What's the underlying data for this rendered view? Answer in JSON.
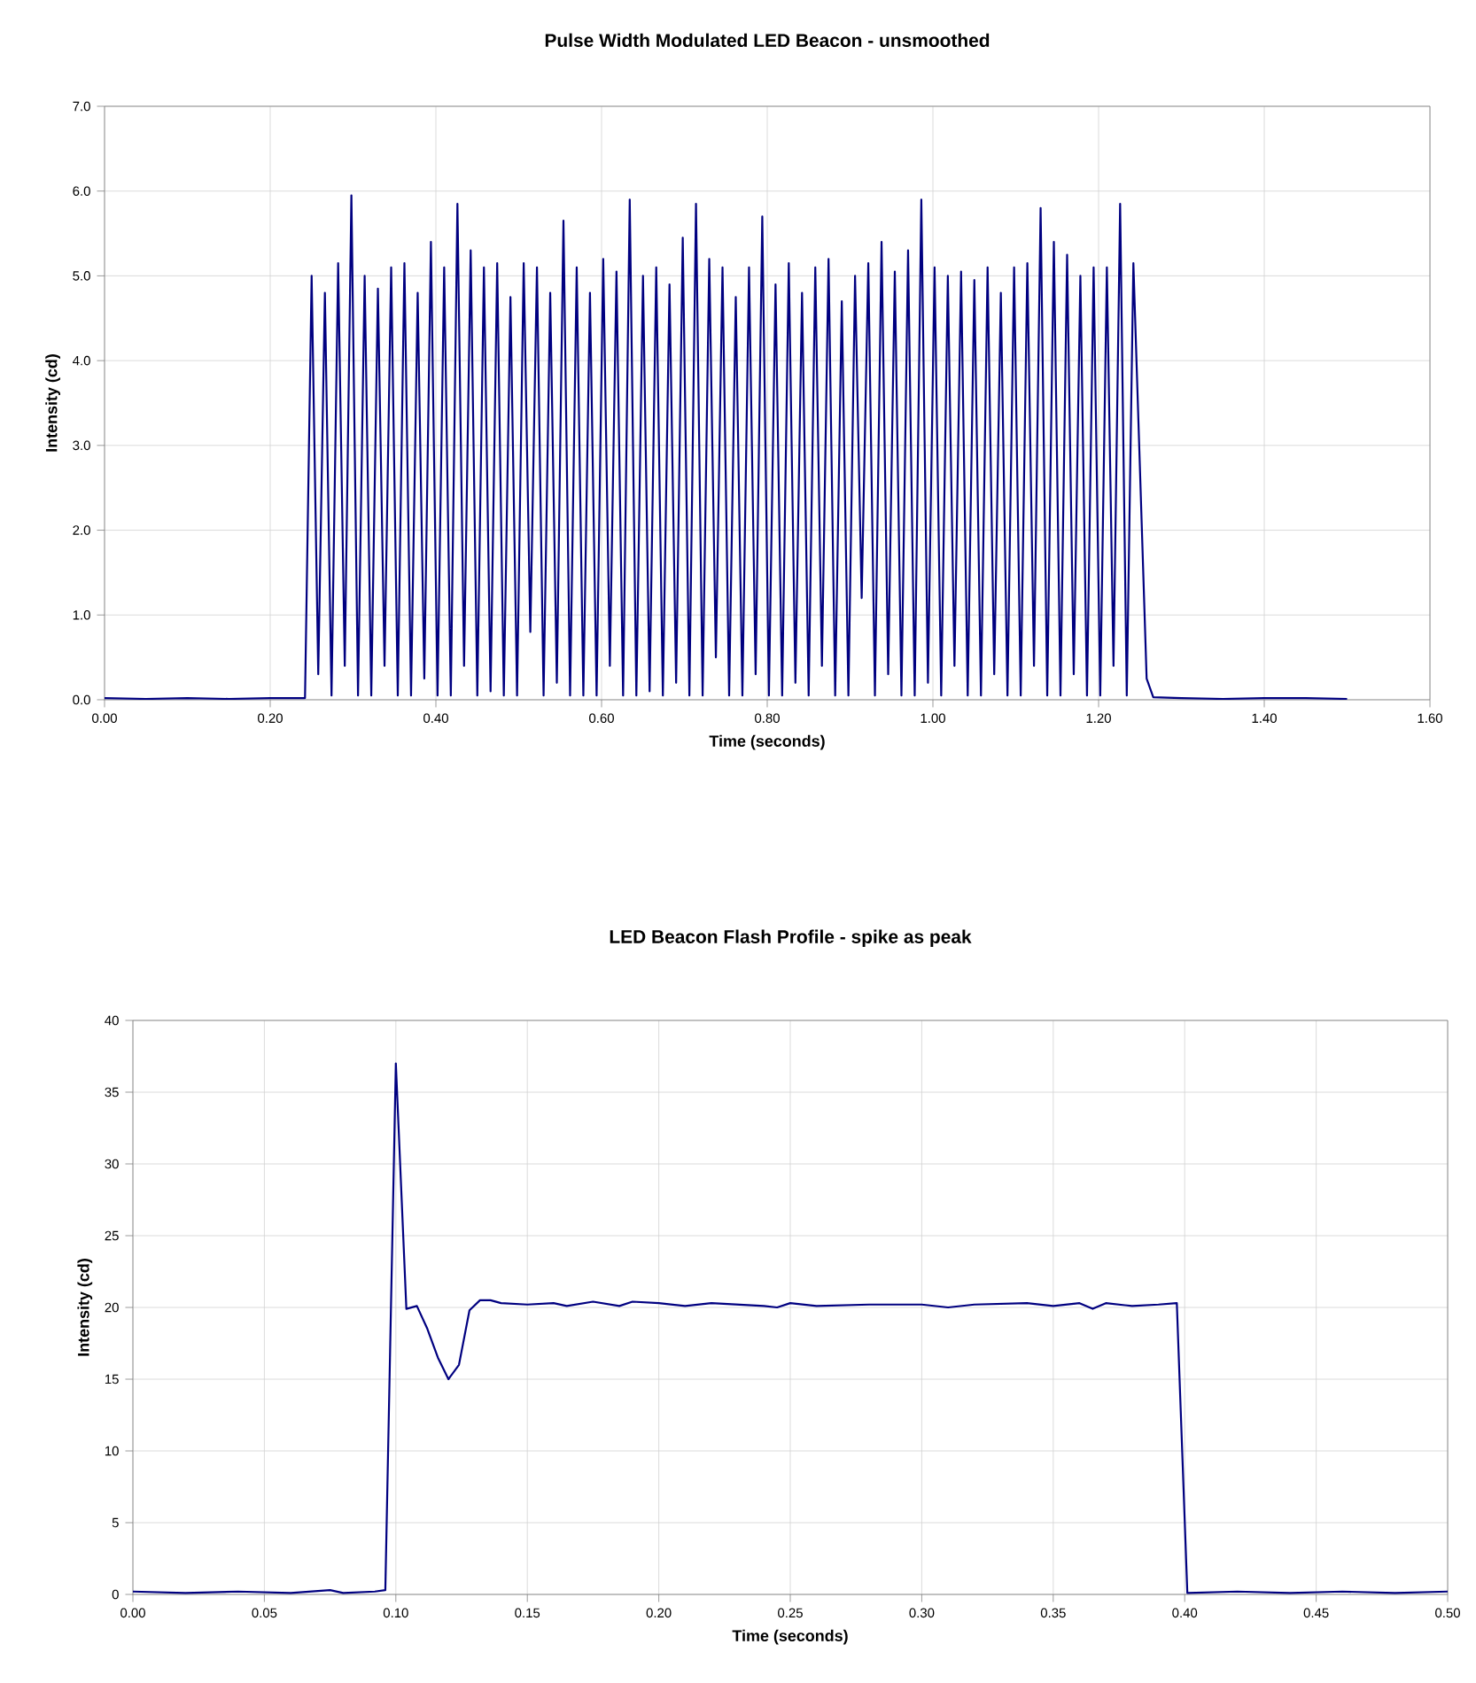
{
  "chart_data": [
    {
      "type": "line",
      "title": "Pulse Width Modulated LED Beacon - unsmoothed",
      "xlabel": "Time (seconds)",
      "ylabel": "Intensity (cd)",
      "grid": true,
      "xlim": [
        0,
        1.6
      ],
      "ylim": [
        0,
        7
      ],
      "xticks": [
        {
          "value": 0,
          "label": "0.00"
        },
        {
          "value": 0.2,
          "label": "0.20"
        },
        {
          "value": 0.4,
          "label": "0.40"
        },
        {
          "value": 0.6,
          "label": "0.60"
        },
        {
          "value": 0.8,
          "label": "0.80"
        },
        {
          "value": 1.0,
          "label": "1.00"
        },
        {
          "value": 1.2,
          "label": "1.20"
        },
        {
          "value": 1.4,
          "label": "1.40"
        },
        {
          "value": 1.6,
          "label": "1.60"
        }
      ],
      "yticks": [
        {
          "value": 0,
          "label": "0.0"
        },
        {
          "value": 1,
          "label": "1.0"
        },
        {
          "value": 2,
          "label": "2.0"
        },
        {
          "value": 3,
          "label": "3.0"
        },
        {
          "value": 4,
          "label": "4.0"
        },
        {
          "value": 5,
          "label": "5.0"
        },
        {
          "value": 6,
          "label": "6.0"
        },
        {
          "value": 7,
          "label": "7.0"
        }
      ],
      "series": [
        {
          "color": "#000080",
          "x": [
            0,
            0.05,
            0.1,
            0.15,
            0.2,
            0.242,
            0.25,
            0.258,
            0.266,
            0.274,
            0.282,
            0.29,
            0.298,
            0.306,
            0.314,
            0.322,
            0.33,
            0.338,
            0.346,
            0.354,
            0.362,
            0.37,
            0.378,
            0.386,
            0.394,
            0.402,
            0.41,
            0.418,
            0.426,
            0.434,
            0.442,
            0.45,
            0.458,
            0.466,
            0.474,
            0.482,
            0.49,
            0.498,
            0.506,
            0.514,
            0.522,
            0.53,
            0.538,
            0.546,
            0.554,
            0.562,
            0.57,
            0.578,
            0.586,
            0.594,
            0.602,
            0.61,
            0.618,
            0.626,
            0.634,
            0.642,
            0.65,
            0.658,
            0.666,
            0.674,
            0.682,
            0.69,
            0.698,
            0.706,
            0.714,
            0.722,
            0.73,
            0.738,
            0.746,
            0.754,
            0.762,
            0.77,
            0.778,
            0.786,
            0.794,
            0.802,
            0.81,
            0.818,
            0.826,
            0.834,
            0.842,
            0.85,
            0.858,
            0.866,
            0.874,
            0.882,
            0.89,
            0.898,
            0.906,
            0.914,
            0.922,
            0.93,
            0.938,
            0.946,
            0.954,
            0.962,
            0.97,
            0.978,
            0.986,
            0.994,
            1.002,
            1.01,
            1.018,
            1.026,
            1.034,
            1.042,
            1.05,
            1.058,
            1.066,
            1.074,
            1.082,
            1.09,
            1.098,
            1.106,
            1.114,
            1.122,
            1.13,
            1.138,
            1.146,
            1.154,
            1.162,
            1.17,
            1.178,
            1.186,
            1.194,
            1.202,
            1.21,
            1.218,
            1.226,
            1.234,
            1.242,
            1.258,
            1.266,
            1.3,
            1.35,
            1.4,
            1.45,
            1.5
          ],
          "values": [
            0.02,
            0.01,
            0.02,
            0.01,
            0.02,
            0.02,
            5.0,
            0.3,
            4.8,
            0.05,
            5.15,
            0.4,
            5.95,
            0.05,
            5.0,
            0.05,
            4.85,
            0.4,
            5.1,
            0.05,
            5.15,
            0.05,
            4.8,
            0.25,
            5.4,
            0.05,
            5.1,
            0.05,
            5.85,
            0.4,
            5.3,
            0.05,
            5.1,
            0.1,
            5.15,
            0.05,
            4.75,
            0.05,
            5.15,
            0.8,
            5.1,
            0.05,
            4.8,
            0.2,
            5.65,
            0.05,
            5.1,
            0.05,
            4.8,
            0.05,
            5.2,
            0.4,
            5.05,
            0.05,
            5.9,
            0.05,
            5.0,
            0.1,
            5.1,
            0.05,
            4.9,
            0.2,
            5.45,
            0.05,
            5.85,
            0.05,
            5.2,
            0.5,
            5.1,
            0.05,
            4.75,
            0.05,
            5.1,
            0.3,
            5.7,
            0.05,
            4.9,
            0.05,
            5.15,
            0.2,
            4.8,
            0.05,
            5.1,
            0.4,
            5.2,
            0.05,
            4.7,
            0.05,
            5.0,
            1.2,
            5.15,
            0.05,
            5.4,
            0.3,
            5.05,
            0.05,
            5.3,
            0.05,
            5.9,
            0.2,
            5.1,
            0.05,
            5.0,
            0.4,
            5.05,
            0.05,
            4.95,
            0.05,
            5.1,
            0.3,
            4.8,
            0.05,
            5.1,
            0.05,
            5.15,
            0.4,
            5.8,
            0.05,
            5.4,
            0.05,
            5.25,
            0.3,
            5.0,
            0.05,
            5.1,
            0.05,
            5.1,
            0.4,
            5.85,
            0.05,
            5.15,
            0.25,
            0.03,
            0.02,
            0.01,
            0.02,
            0.02,
            0.01
          ]
        }
      ]
    },
    {
      "type": "line",
      "title": "LED Beacon Flash Profile - spike as peak",
      "xlabel": "Time (seconds)",
      "ylabel": "Intensity (cd)",
      "grid": true,
      "xlim": [
        0,
        0.5
      ],
      "ylim": [
        0,
        40
      ],
      "xticks": [
        {
          "value": 0,
          "label": "0.00"
        },
        {
          "value": 0.05,
          "label": "0.05"
        },
        {
          "value": 0.1,
          "label": "0.10"
        },
        {
          "value": 0.15,
          "label": "0.15"
        },
        {
          "value": 0.2,
          "label": "0.20"
        },
        {
          "value": 0.25,
          "label": "0.25"
        },
        {
          "value": 0.3,
          "label": "0.30"
        },
        {
          "value": 0.35,
          "label": "0.35"
        },
        {
          "value": 0.4,
          "label": "0.40"
        },
        {
          "value": 0.45,
          "label": "0.45"
        },
        {
          "value": 0.5,
          "label": "0.50"
        }
      ],
      "yticks": [
        0,
        5,
        10,
        15,
        20,
        25,
        30,
        35,
        40
      ],
      "series": [
        {
          "color": "#000080",
          "x": [
            0,
            0.02,
            0.04,
            0.06,
            0.075,
            0.08,
            0.092,
            0.096,
            0.1,
            0.104,
            0.108,
            0.112,
            0.116,
            0.12,
            0.124,
            0.128,
            0.132,
            0.136,
            0.14,
            0.15,
            0.16,
            0.165,
            0.175,
            0.185,
            0.19,
            0.2,
            0.21,
            0.22,
            0.24,
            0.245,
            0.25,
            0.26,
            0.28,
            0.3,
            0.31,
            0.32,
            0.34,
            0.35,
            0.36,
            0.365,
            0.37,
            0.38,
            0.39,
            0.397,
            0.401,
            0.42,
            0.44,
            0.46,
            0.48,
            0.5
          ],
          "values": [
            0.2,
            0.1,
            0.2,
            0.1,
            0.3,
            0.1,
            0.2,
            0.3,
            37,
            19.9,
            20.1,
            18.5,
            16.5,
            15.0,
            16.0,
            19.8,
            20.5,
            20.5,
            20.3,
            20.2,
            20.3,
            20.1,
            20.4,
            20.1,
            20.4,
            20.3,
            20.1,
            20.3,
            20.1,
            20.0,
            20.3,
            20.1,
            20.2,
            20.2,
            20.0,
            20.2,
            20.3,
            20.1,
            20.3,
            19.9,
            20.3,
            20.1,
            20.2,
            20.3,
            0.1,
            0.2,
            0.1,
            0.2,
            0.1,
            0.2
          ]
        }
      ]
    }
  ]
}
